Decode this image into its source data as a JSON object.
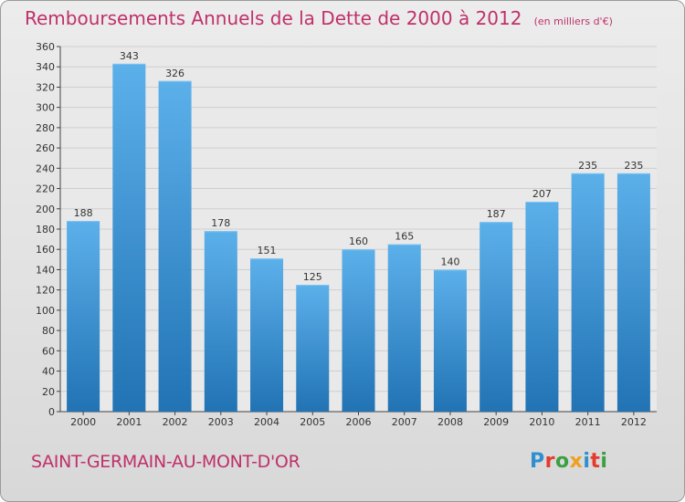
{
  "header": {
    "title": "Remboursements Annuels de la Dette de 2000 à 2012",
    "subtitle": "(en milliers d'€)"
  },
  "footer": {
    "commune": "SAINT-GERMAIN-AU-MONT-D'OR",
    "logo_text": "Proxiti",
    "logo_colors": [
      "#2f8fcf",
      "#e43c2c",
      "#3aa043",
      "#f0a020",
      "#2f8fcf",
      "#e43c2c",
      "#3aa043"
    ]
  },
  "colors": {
    "title": "#c0306a",
    "bar_light": "#5cb0ea",
    "bar_dark": "#2173b4",
    "grid": "#cfcfcf",
    "axis": "#444444"
  },
  "chart_data": {
    "type": "bar",
    "categories": [
      "2000",
      "2001",
      "2002",
      "2003",
      "2004",
      "2005",
      "2006",
      "2007",
      "2008",
      "2009",
      "2010",
      "2011",
      "2012"
    ],
    "values": [
      188,
      343,
      326,
      178,
      151,
      125,
      160,
      165,
      140,
      187,
      207,
      235,
      235
    ],
    "ylim": [
      0,
      360
    ],
    "yticks": [
      0,
      20,
      40,
      60,
      80,
      100,
      120,
      140,
      160,
      180,
      200,
      220,
      240,
      260,
      280,
      300,
      320,
      340,
      360
    ],
    "grid": true,
    "title": "Remboursements Annuels de la Dette de 2000 à 2012",
    "xlabel": "",
    "ylabel": ""
  }
}
